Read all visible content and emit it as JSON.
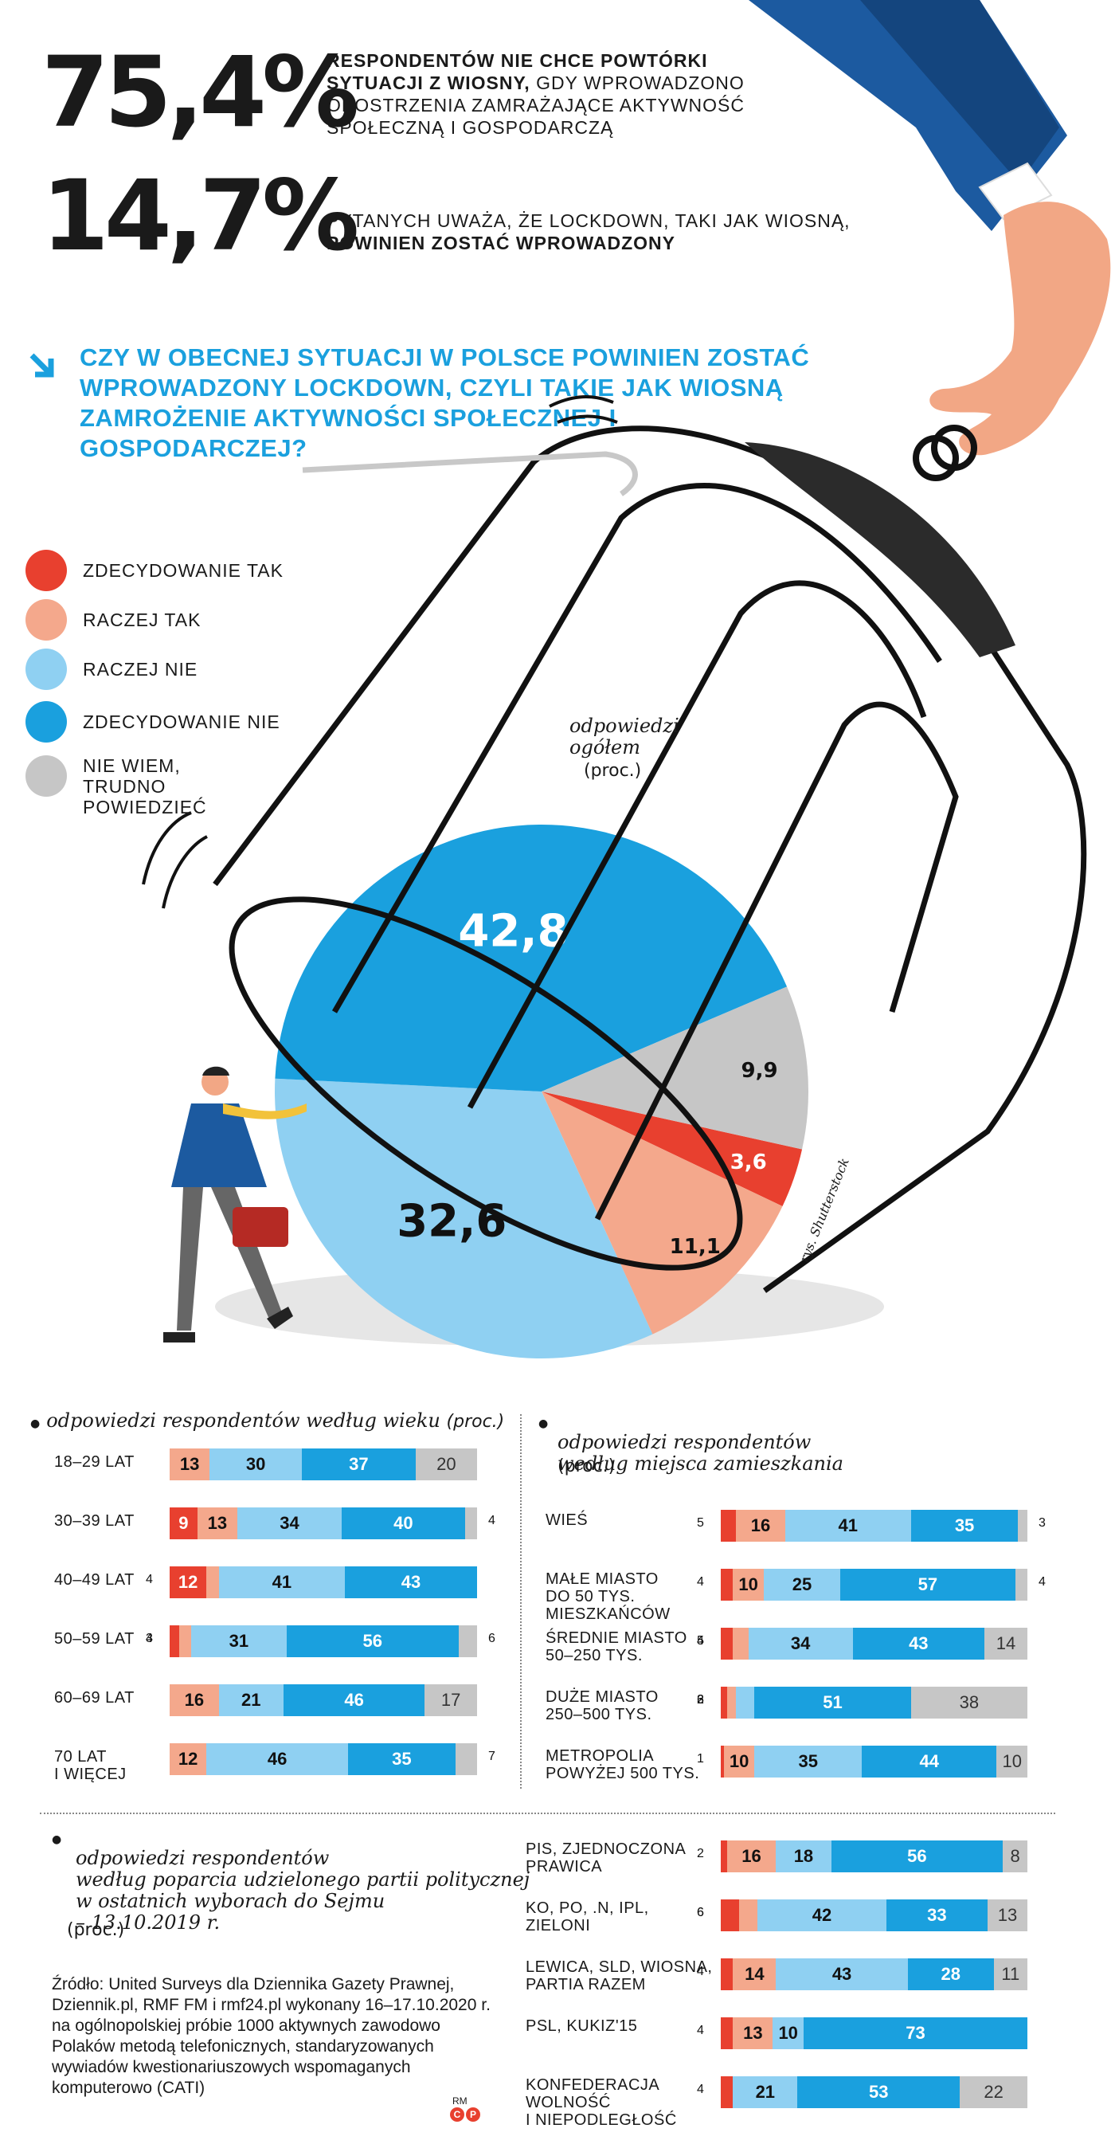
{
  "header": {
    "stat1": {
      "value": "75,4%",
      "bold_text": "RESPONDENTÓW NIE CHCE POWTÓRKI SYTUACJI Z WIOSNY,",
      "text": "GDY WPROWADZONO OBOSTRZENIA ZAMRAŻAJĄCE AKTYWNOŚĆ SPOŁECZNĄ I GOSPODARCZĄ"
    },
    "stat2": {
      "value": "14,7%",
      "text": "PYTANYCH UWAŻA, ŻE LOCKDOWN, TAKI JAK WIOSNĄ,",
      "bold_text": "POWINIEN ZOSTAĆ WPROWADZONY"
    }
  },
  "question": "CZY W OBECNEJ SYTUACJI W POLSCE POWINIEN ZOSTAĆ WPROWADZONY LOCKDOWN, CZYLI TAKIE JAK WIOSNĄ ZAMROŻENIE AKTYWNOŚCI SPOŁECZNEJ I GOSPODARCZEJ?",
  "legend": [
    {
      "label": "ZDECYDOWANIE TAK",
      "color": "#e8402f"
    },
    {
      "label": "RACZEJ TAK",
      "color": "#f4a88c"
    },
    {
      "label": "RACZEJ NIE",
      "color": "#8fd0f2"
    },
    {
      "label": "ZDECYDOWANIE NIE",
      "color": "#1aa0de"
    },
    {
      "label": "NIE WIEM,\nTRUDNO\nPOWIEDZIEĆ",
      "color": "#c6c6c6"
    }
  ],
  "pie_note": {
    "text": "odpowiedzi\nogółem",
    "unit": "(proc.)"
  },
  "illustration_credit": "rys. Shutterstock",
  "age_title": {
    "text": "odpowiedzi respondentów według wieku",
    "unit": "(proc.)"
  },
  "residence_title": {
    "text": "odpowiedzi respondentów\nwedług miejsca zamieszkania",
    "unit": "(proc.)"
  },
  "party_title": {
    "text": "odpowiedzi respondentów\nwedług poparcia udzielonego partii politycznej\nw ostatnich wyborach do Sejmu\n– 13.10.2019 r.",
    "unit": "(proc.)"
  },
  "source": "Źródło: United Surveys dla Dziennika Gazety Prawnej, Dziennik.pl, RMF FM i rmf24.pl wykonany 16–17.10.2020 r. na ogólnopolskiej próbie 1000 aktywnych zawodowo Polaków metodą telefonicznych, standaryzowanych wywiadów kwestionariuszowych wspomaganych komputerowo (CATI)",
  "signature": "RM",
  "chart_data": [
    {
      "type": "pie",
      "title": "CZY W OBECNEJ SYTUACJI W POLSCE POWINIEN ZOSTAĆ WPROWADZONY LOCKDOWN, CZYLI TAKIE JAK WIOSNĄ ZAMROŻENIE AKTYWNOŚCI SPOŁECZNEJ I GOSPODARCZEJ?",
      "categories": [
        "ZDECYDOWANIE TAK",
        "RACZEJ TAK",
        "RACZEJ NIE",
        "ZDECYDOWANIE NIE",
        "NIE WIEM, TRUDNO POWIEDZIEĆ"
      ],
      "labels": [
        "3,6",
        "11,1",
        "32,6",
        "42,8",
        "9,9"
      ],
      "values": [
        3.6,
        11.1,
        32.6,
        42.8,
        9.9
      ]
    },
    {
      "type": "bar",
      "stacked": true,
      "orientation": "horizontal",
      "title": "odpowiedzi respondentów według wieku",
      "categories": [
        "18–29 LAT",
        "30–39 LAT",
        "40–49 LAT",
        "50–59 LAT",
        "60–69 LAT",
        "70 LAT\nI WIĘCEJ"
      ],
      "series": [
        {
          "name": "ZDECYDOWANIE TAK",
          "values": [
            0,
            9,
            12,
            3,
            0,
            0
          ]
        },
        {
          "name": "RACZEJ TAK",
          "values": [
            13,
            13,
            4,
            4,
            16,
            12
          ]
        },
        {
          "name": "RACZEJ NIE",
          "values": [
            30,
            34,
            41,
            31,
            21,
            46
          ]
        },
        {
          "name": "ZDECYDOWANIE NIE",
          "values": [
            37,
            40,
            43,
            56,
            46,
            35
          ]
        },
        {
          "name": "NIE WIEM, TRUDNO POWIEDZIEĆ",
          "values": [
            20,
            4,
            0,
            6,
            17,
            7
          ]
        }
      ]
    },
    {
      "type": "bar",
      "stacked": true,
      "orientation": "horizontal",
      "title": "odpowiedzi respondentów według miejsca zamieszkania",
      "categories": [
        "WIEŚ",
        "MAŁE MIASTO\ndo 50 tys.\nmieszkańców",
        "ŚREDNIE MIASTO\n50–250 tys.",
        "DUŻE MIASTO\n250–500 tys.",
        "METROPOLIA\npowyżej 500 tys."
      ],
      "series": [
        {
          "name": "ZDECYDOWANIE TAK",
          "values": [
            5,
            4,
            4,
            2,
            1
          ]
        },
        {
          "name": "RACZEJ TAK",
          "values": [
            16,
            10,
            5,
            3,
            10
          ]
        },
        {
          "name": "RACZEJ NIE",
          "values": [
            41,
            25,
            34,
            6,
            35
          ]
        },
        {
          "name": "ZDECYDOWANIE NIE",
          "values": [
            35,
            57,
            43,
            51,
            44
          ]
        },
        {
          "name": "NIE WIEM, TRUDNO POWIEDZIEĆ",
          "values": [
            3,
            4,
            14,
            38,
            10
          ]
        }
      ]
    },
    {
      "type": "bar",
      "stacked": true,
      "orientation": "horizontal",
      "title": "odpowiedzi respondentów według poparcia udzielonego partii politycznej w ostatnich wyborach do Sejmu – 13.10.2019 r.",
      "categories": [
        "PiS, ZJEDNOCZONA\nPRAWICA",
        "KO, PO, .N, IPL,\nZIELONI",
        "LEWICA, SLD, WIOSNA,\nPARTIA RAZEM",
        "PSL, KUKIZ'15",
        "KONFEDERACJA\nWOLNOŚĆ\nI NIEPODLEGŁOŚĆ"
      ],
      "series": [
        {
          "name": "ZDECYDOWANIE TAK",
          "values": [
            2,
            6,
            4,
            4,
            4
          ]
        },
        {
          "name": "RACZEJ TAK",
          "values": [
            16,
            6,
            14,
            13,
            0
          ]
        },
        {
          "name": "RACZEJ NIE",
          "values": [
            18,
            42,
            43,
            10,
            21
          ]
        },
        {
          "name": "ZDECYDOWANIE NIE",
          "values": [
            56,
            33,
            28,
            73,
            53
          ]
        },
        {
          "name": "NIE WIEM, TRUDNO POWIEDZIEĆ",
          "values": [
            8,
            13,
            11,
            0,
            22
          ]
        }
      ]
    }
  ]
}
